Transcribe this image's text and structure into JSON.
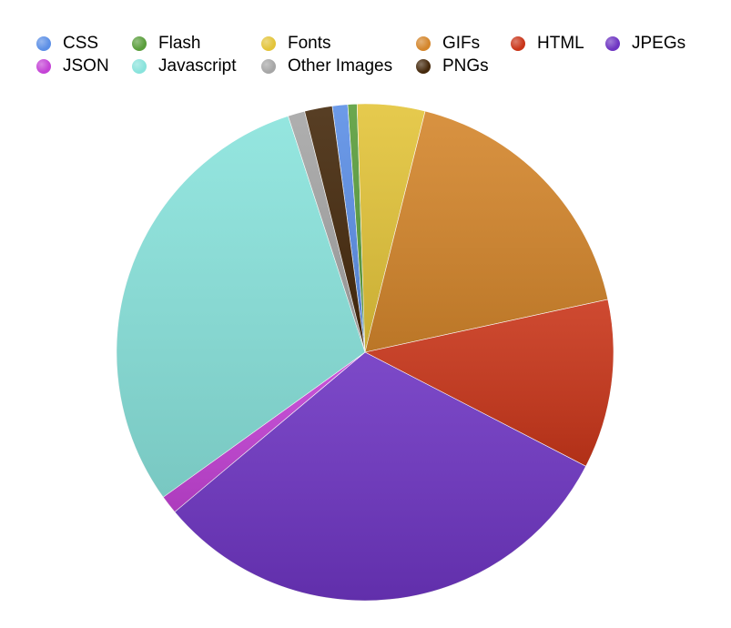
{
  "chart_data": {
    "type": "pie",
    "title": "",
    "legend_position": "top",
    "series": [
      {
        "name": "CSS",
        "value": 1.0,
        "color": "#5c8fe6"
      },
      {
        "name": "Flash",
        "value": 0.6,
        "color": "#5a9e3c"
      },
      {
        "name": "Fonts",
        "value": 4.4,
        "color": "#e3c43a"
      },
      {
        "name": "GIFs",
        "value": 17.7,
        "color": "#d4862c"
      },
      {
        "name": "HTML",
        "value": 11.0,
        "color": "#c9361a"
      },
      {
        "name": "JPEGs",
        "value": 31.3,
        "color": "#6e35c2"
      },
      {
        "name": "JSON",
        "value": 1.2,
        "color": "#c443d6"
      },
      {
        "name": "Javascript",
        "value": 29.9,
        "color": "#89e3dc"
      },
      {
        "name": "Other Images",
        "value": 1.1,
        "color": "#a6a6a6"
      },
      {
        "name": "PNGs",
        "value": 1.8,
        "color": "#45290c"
      }
    ]
  }
}
